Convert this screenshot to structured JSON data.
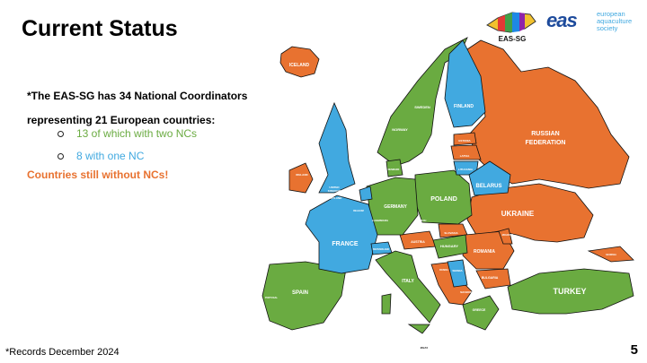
{
  "slide": {
    "title": "Current Status",
    "intro": "*The EAS-SG has 34 National Coordinators representing 21 European countries:",
    "bullets": [
      "13 of which with two NCs",
      "8 with one NC"
    ],
    "warning": "Countries still without NCs!",
    "footer": "*Records December 2024",
    "page_number": "5"
  },
  "logos": {
    "eas_sg": "EAS-SG",
    "eas": "eas",
    "eas_text": "european aquaculture society"
  },
  "colors": {
    "two_ncs": "#6aab41",
    "one_nc": "#41a9e0",
    "no_nc": "#e87230"
  },
  "map": {
    "labels": {
      "iceland": "ICELAND",
      "norway": "NORWAY",
      "sweden": "SWEDEN",
      "finland": "FINLAND",
      "russia1": "RUSSIAN",
      "russia2": "FEDERATION",
      "estonia": "ESTONIA",
      "latvia": "LATVIA",
      "lithuania": "LITHUANIA",
      "belarus": "BELARUS",
      "ireland": "IRELAND",
      "uk1": "UNITED",
      "uk2": "KINGDOM",
      "uk3": "/",
      "uk4": "SCOTLAND",
      "poland": "POLAND",
      "germany": "GERMANY",
      "ukraine": "UKRAINE",
      "france": "FRANCE",
      "austria": "AUSTRIA",
      "hungary": "HUNGARY",
      "romania": "ROMANIA",
      "croatia": "CROATIA",
      "serbia": "SERBIA",
      "bulgaria": "BULGARIA",
      "italy": "ITALY",
      "spain": "SPAIN",
      "turkey": "TURKEY",
      "greece": "GREECE",
      "malta": "MALTA",
      "denmark": "DENMARK",
      "belgium": "BELGIUM",
      "luxembourg": "LUXEMBOURG",
      "czech1": "CZECH",
      "czech2": "REPUBLIC",
      "slovakia": "SLOVAKIA",
      "slovenia": "SLOVENIA",
      "switzerland": "SWITZERLAND",
      "macedonia": "MACEDONIA",
      "georgia": "GEORGIA",
      "moldova": "MOLDOVA",
      "portugal": "PORTUGAL",
      "bosnia": "BOSNIA"
    }
  }
}
